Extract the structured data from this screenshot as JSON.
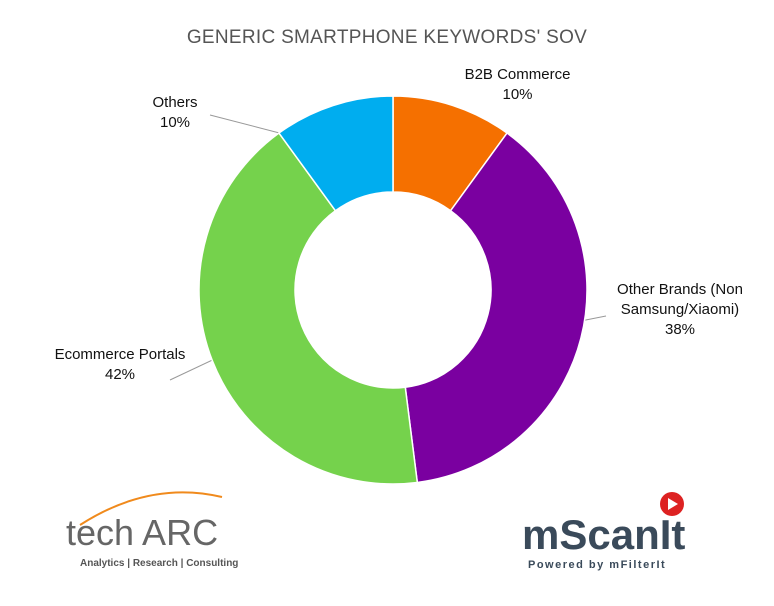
{
  "chart_data": {
    "type": "donut",
    "title": "GENERIC SMARTPHONE KEYWORDS' SOV",
    "categories": [
      "B2B Commerce",
      "Other Brands (Non Samsung/Xiaomi)",
      "Ecommerce Portals",
      "Others"
    ],
    "values": [
      10,
      38,
      42,
      10
    ],
    "value_labels": [
      "10%",
      "38%",
      "42%",
      "10%"
    ],
    "colors": [
      "#f57000",
      "#7a00a0",
      "#75d24c",
      "#00adef"
    ]
  },
  "logos": {
    "left": {
      "name": "tech ARC",
      "tagline": "Analytics | Research | Consulting"
    },
    "right": {
      "name": "mScanIt",
      "tagline": "Powered by mFilterIt"
    }
  }
}
